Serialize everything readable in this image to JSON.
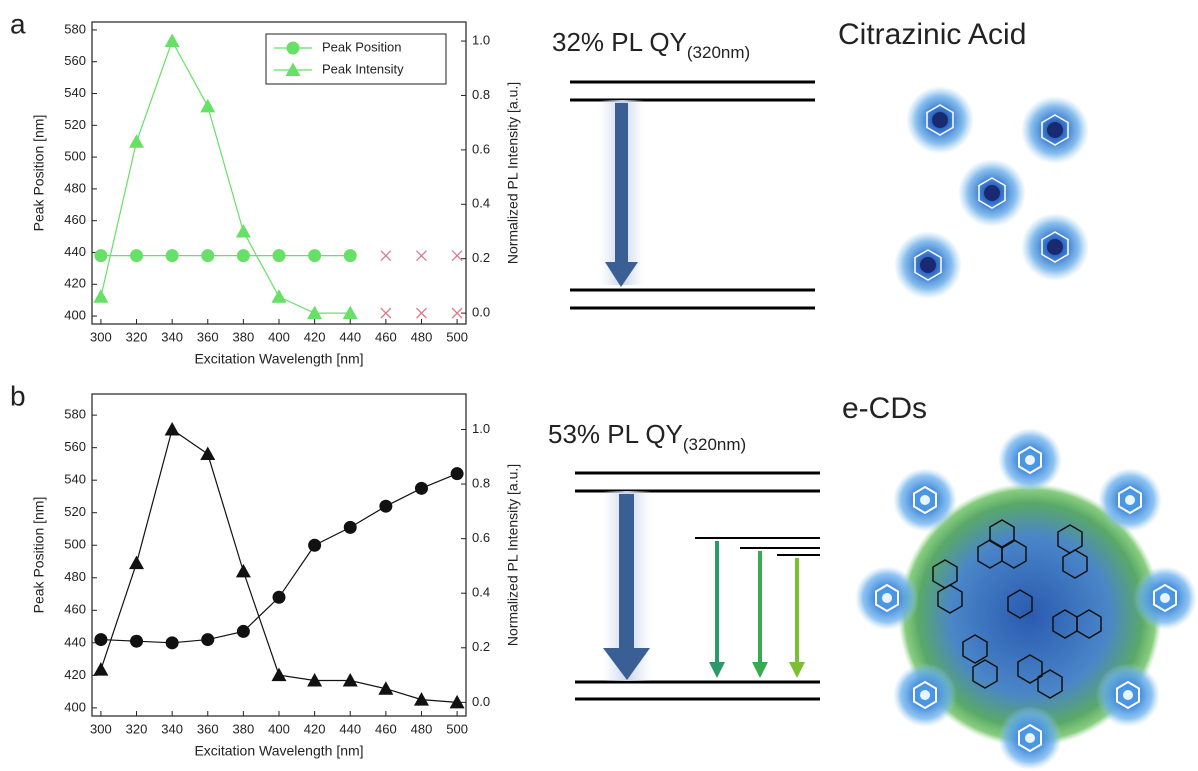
{
  "chart_data": [
    {
      "type": "line",
      "panel": "a",
      "x_label": "Excitation Wavelength [nm]",
      "y_label": "Peak Position [nm]",
      "y2_label": "Normalized PL Intensity [a.u.]",
      "x": [
        300,
        320,
        340,
        360,
        380,
        400,
        420,
        440,
        460,
        480,
        500
      ],
      "xlim": [
        295,
        505
      ],
      "xticks": [
        300,
        320,
        340,
        360,
        380,
        400,
        420,
        440,
        460,
        480,
        500
      ],
      "ylim": [
        395,
        585
      ],
      "yticks": [
        400,
        420,
        440,
        460,
        480,
        500,
        520,
        540,
        560,
        580
      ],
      "y2lim": [
        -0.04,
        1.07
      ],
      "y2ticks": [
        {
          "value": 0,
          "label": "0.0"
        },
        0.2,
        0.4,
        0.6,
        0.8,
        {
          "value": 1,
          "label": "1.0"
        }
      ],
      "legend": "top-right",
      "series": [
        {
          "name": "Peak Position",
          "color": "#66e066",
          "marker": "circle",
          "line": true,
          "values": [
            438,
            438,
            438,
            438,
            438,
            438,
            438,
            438,
            null,
            null,
            null
          ]
        },
        {
          "name": "Peak Intensity",
          "color": "#66e066",
          "marker": "triangle",
          "line": true,
          "axis": "y2",
          "values": [
            0.06,
            0.63,
            1.0,
            0.76,
            0.3,
            0.06,
            0.0,
            0.0,
            null,
            null,
            null
          ]
        },
        {
          "color": "#e07a8a",
          "marker": "x",
          "line": false,
          "values": [
            null,
            null,
            null,
            null,
            null,
            null,
            null,
            null,
            438,
            438,
            438
          ]
        },
        {
          "color": "#e07a8a",
          "marker": "x",
          "line": false,
          "axis": "y2",
          "values": [
            null,
            null,
            null,
            null,
            null,
            null,
            null,
            null,
            0.0,
            0.0,
            0.0
          ]
        }
      ]
    },
    {
      "type": "line",
      "panel": "b",
      "x_label": "Excitation Wavelength [nm]",
      "y_label": "Peak Position [nm]",
      "y2_label": "Normalized PL Intensity [a.u.]",
      "x": [
        300,
        320,
        340,
        360,
        380,
        400,
        420,
        440,
        460,
        480,
        500
      ],
      "xlim": [
        295,
        505
      ],
      "xticks": [
        300,
        320,
        340,
        360,
        380,
        400,
        420,
        440,
        460,
        480,
        500
      ],
      "ylim": [
        395,
        593
      ],
      "yticks": [
        400,
        420,
        440,
        460,
        480,
        500,
        520,
        540,
        560,
        580
      ],
      "y2lim": [
        -0.05,
        1.13
      ],
      "y2ticks": [
        {
          "value": 0,
          "label": "0.0"
        },
        0.2,
        0.4,
        0.6,
        0.8,
        {
          "value": 1,
          "label": "1.0"
        }
      ],
      "series": [
        {
          "color": "#111111",
          "marker": "circle",
          "line": true,
          "values": [
            442,
            441,
            440,
            442,
            447,
            468,
            500,
            511,
            524,
            535,
            544
          ]
        },
        {
          "color": "#111111",
          "marker": "triangle",
          "line": true,
          "axis": "y2",
          "values": [
            0.12,
            0.51,
            1.0,
            0.91,
            0.48,
            0.1,
            0.08,
            0.08,
            0.05,
            0.01,
            0.0
          ]
        }
      ]
    }
  ],
  "diagrams": {
    "a": {
      "qy": "32% PL QY",
      "qy_sub": "(320nm)",
      "title": "Citrazinic Acid"
    },
    "b": {
      "qy": "53% PL QY",
      "qy_sub": "(320nm)",
      "title": "e-CDs"
    }
  }
}
